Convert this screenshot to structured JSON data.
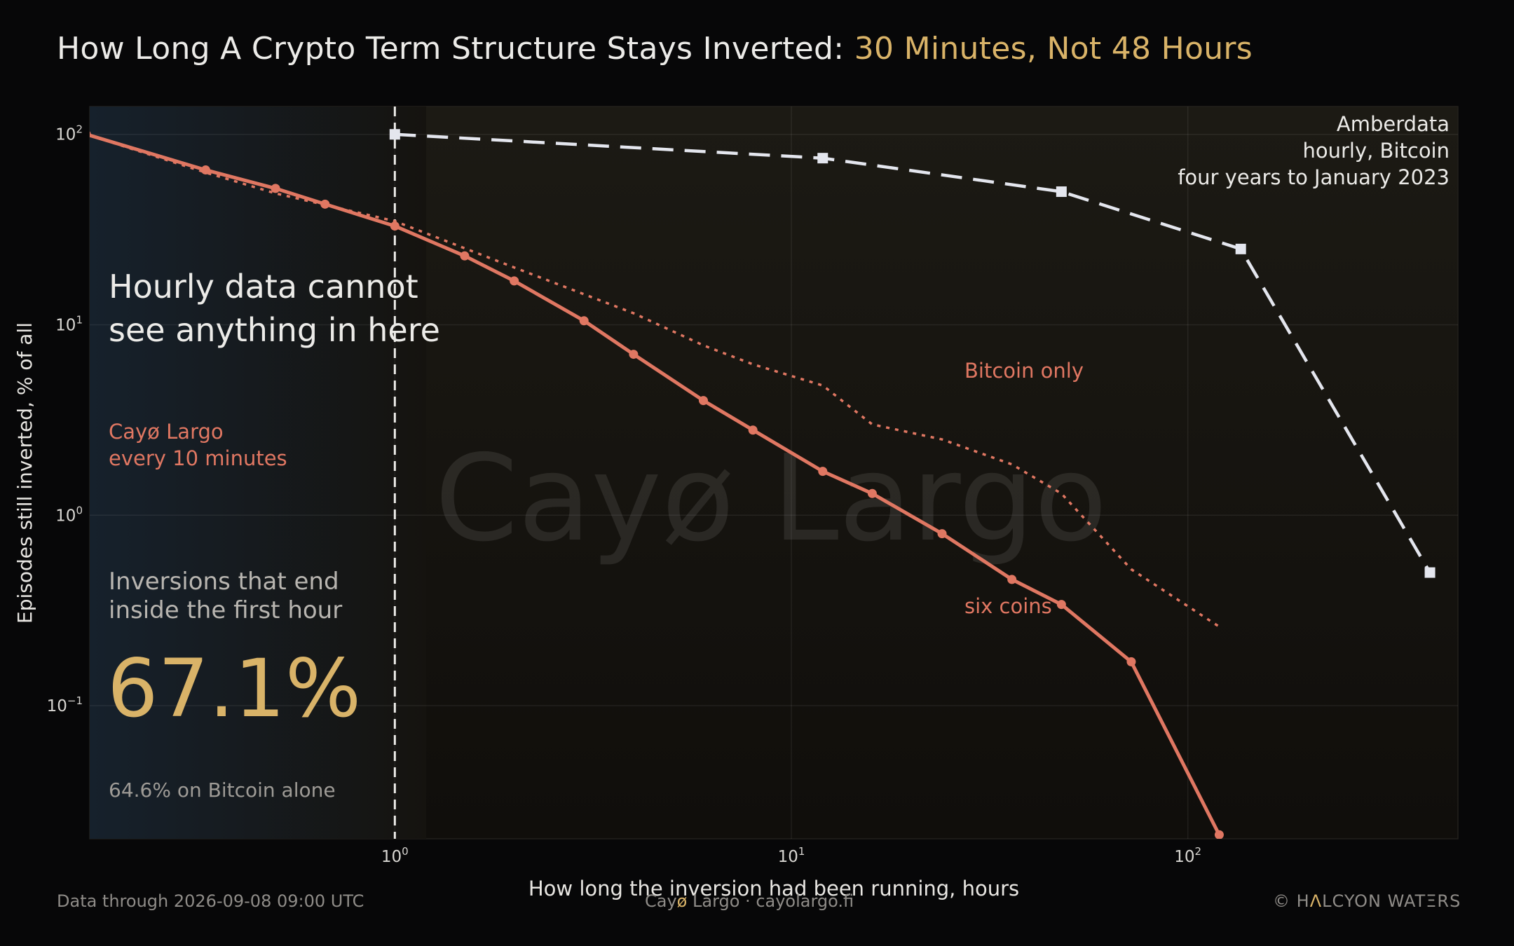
{
  "header": {
    "title_main": "How Long A Crypto Term Structure Stays Inverted: ",
    "title_accent": "30 Minutes, Not 48 Hours"
  },
  "footer": {
    "data_note": "Data through 2026-09-08 09:00 UTC",
    "brand_pre": "Cay",
    "brand_o": "ø",
    "brand_post": " Largo  ·  cayolargo.fi",
    "copyright_pre": "© H",
    "copyright_a": "Λ",
    "copyright_post": "LCYON WATΞRS"
  },
  "colors": {
    "six_coins": "#e07762",
    "bitcoin_only": "#e07762",
    "amberdata": "#e4e6ee",
    "accent_gold": "#d9b368",
    "plot_bg": "#15130f"
  },
  "chart_data": {
    "type": "line",
    "xscale": "log",
    "yscale": "log",
    "xlim": [
      0.17,
      480
    ],
    "ylim": [
      0.02,
      140
    ],
    "xlabel": "How long the inversion had been running, hours",
    "ylabel": "Episodes still inverted, % of all",
    "x_ticks": [
      1,
      10,
      100
    ],
    "y_ticks": [
      0.1,
      1,
      10,
      100
    ],
    "grid": true,
    "watermark": "Cayø Largo",
    "reference_line": {
      "x": 1
    },
    "series": [
      {
        "name": "six coins",
        "style": "solid",
        "marker": "circle",
        "x": [
          0.1667,
          0.3333,
          0.5,
          0.6667,
          1,
          1.5,
          2,
          3,
          4,
          6,
          8,
          12,
          16,
          24,
          36,
          48,
          72,
          120
        ],
        "y": [
          100,
          65,
          52,
          43,
          33,
          23,
          17,
          10.5,
          7,
          4,
          2.8,
          1.7,
          1.3,
          0.8,
          0.46,
          0.34,
          0.17,
          0.021
        ]
      },
      {
        "name": "Bitcoin only",
        "style": "dotted",
        "marker": "none",
        "x": [
          0.1667,
          0.3333,
          0.5,
          1,
          2,
          4,
          6,
          8,
          12,
          16,
          24,
          36,
          48,
          72,
          120
        ],
        "y": [
          100,
          63,
          49,
          35,
          20,
          11.5,
          7.8,
          6.2,
          4.8,
          3,
          2.5,
          1.85,
          1.3,
          0.52,
          0.26
        ]
      },
      {
        "name": "Amberdata hourly, Bitcoin four years to January 2023",
        "style": "dashed",
        "marker": "square",
        "x": [
          1,
          12,
          48,
          136,
          408
        ],
        "y": [
          100,
          75,
          50,
          25,
          0.5
        ]
      }
    ],
    "annotations": {
      "amberdata": [
        "Amberdata",
        "hourly, Bitcoin",
        "four years to January 2023"
      ],
      "hourly_blind": [
        "Hourly data cannot",
        "see anything in here"
      ],
      "cayo": [
        "Cayø Largo",
        "every 10 minutes"
      ],
      "series_six": "six coins",
      "series_btc": "Bitcoin only",
      "stat_caption": [
        "Inversions that end",
        "inside the first hour"
      ],
      "stat_value": "67.1%",
      "stat_btc": "64.6% on Bitcoin alone"
    }
  }
}
